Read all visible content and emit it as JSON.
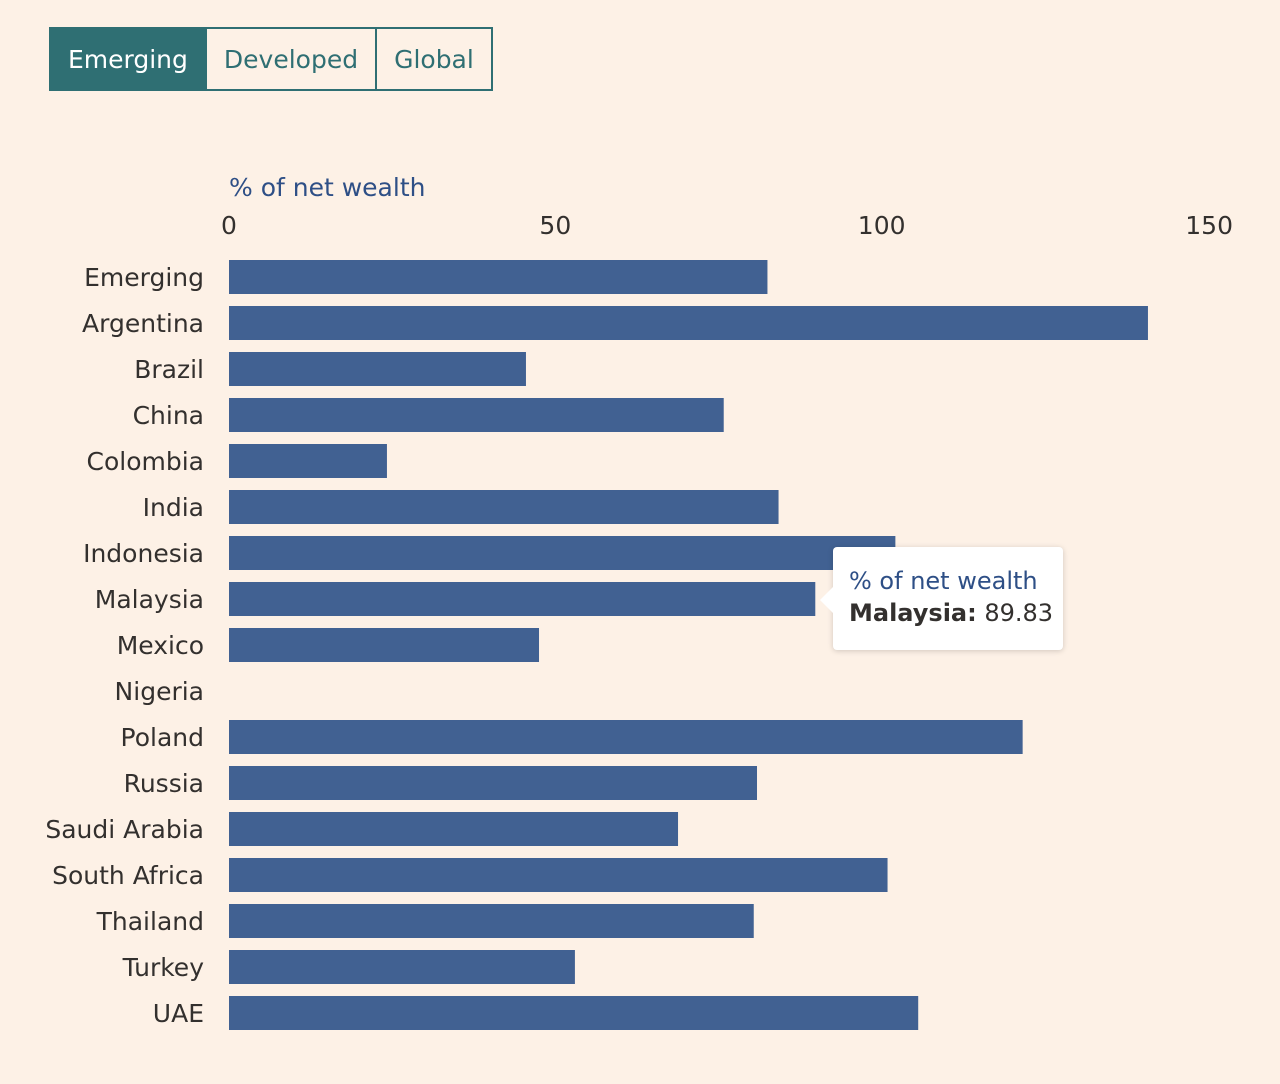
{
  "tabs": [
    {
      "label": "Emerging",
      "active": true
    },
    {
      "label": "Developed",
      "active": false
    },
    {
      "label": "Global",
      "active": false
    }
  ],
  "colors": {
    "background": "#fdf1e6",
    "bar": "#416192",
    "tab_accent": "#2f6f73",
    "axis_title": "#2e4f86",
    "text": "#33302e"
  },
  "chart_data": {
    "type": "bar",
    "orientation": "horizontal",
    "xlabel": "% of net wealth",
    "xlim": [
      0,
      150
    ],
    "xticks": [
      0,
      50,
      100,
      150
    ],
    "grid": false,
    "categories": [
      "Emerging",
      "Argentina",
      "Brazil",
      "China",
      "Colombia",
      "India",
      "Indonesia",
      "Malaysia",
      "Mexico",
      "Nigeria",
      "Poland",
      "Russia",
      "Saudi Arabia",
      "South Africa",
      "Thailand",
      "Turkey",
      "UAE"
    ],
    "values": [
      82.5,
      140.8,
      45.5,
      75.8,
      24.2,
      84.2,
      102.1,
      89.83,
      47.5,
      null,
      121.6,
      80.9,
      68.8,
      100.9,
      80.4,
      53.0,
      105.6
    ]
  },
  "tooltip": {
    "title": "% of net wealth",
    "label": "Malaysia:",
    "value": "89.83"
  }
}
